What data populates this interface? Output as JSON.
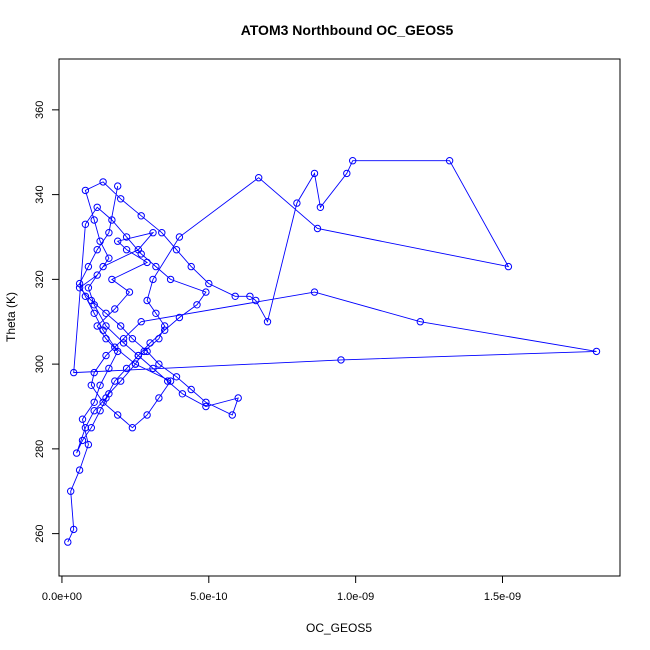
{
  "chart_data": {
    "type": "line",
    "title": "ATOM3 Northbound OC_GEOS5",
    "xlabel": "OC_GEOS5",
    "ylabel": "Theta (K)",
    "xlim": [
      -1e-11,
      1.9e-09
    ],
    "ylim": [
      250,
      372
    ],
    "x_ticks": [
      0,
      5e-10,
      1e-09,
      1.5e-09
    ],
    "x_tick_labels": [
      "0.0e+00",
      "5.0e-10",
      "1.0e-09",
      "1.5e-09"
    ],
    "y_ticks": [
      260,
      280,
      300,
      320,
      340,
      360
    ],
    "y_tick_labels": [
      "260",
      "280",
      "300",
      "320",
      "340",
      "360"
    ],
    "grid": false,
    "legend": "none",
    "series_color": "#0000ff",
    "marker": "open-circle",
    "series": [
      {
        "x": [
          2e-11,
          4e-11,
          3e-11,
          6e-11,
          9e-11,
          7e-11,
          1.1e-10,
          1.3e-10,
          1.6e-10,
          1.9e-10,
          1.5e-10,
          1.2e-10,
          1.8e-10,
          2.3e-10,
          1.7e-10,
          2.9e-10,
          2.2e-10,
          1.9e-10,
          3.1e-10,
          2.6e-10,
          1.4e-10,
          9e-11,
          1.1e-10,
          1.5e-10,
          2.1e-10,
          2.6e-10,
          3.1e-10,
          3.6e-10,
          4.1e-10,
          4.9e-10,
          6e-10,
          5.8e-10,
          4.9e-10,
          4.4e-10,
          3.9e-10,
          3.3e-10,
          2.9e-10,
          2.4e-10,
          2e-10,
          1.5e-10,
          1e-10,
          6e-11,
          1.2e-10,
          1.6e-10,
          1.3e-10,
          1.1e-10,
          8e-11,
          1.4e-10,
          2e-10,
          2.7e-10,
          3.4e-10,
          3.9e-10,
          4.4e-10,
          5e-10,
          5.9e-10,
          6.4e-10,
          6.6e-10,
          7e-10,
          8e-10,
          8.6e-10,
          8.8e-10,
          9.7e-10,
          9.9e-10,
          1.32e-09,
          1.52e-09,
          8.7e-10,
          6.7e-10,
          4e-10,
          3.1e-10,
          2.9e-10,
          3.2e-10,
          3.5e-10,
          3.3e-10,
          2.8e-10,
          2.5e-10,
          2e-10,
          1.6e-10,
          1.3e-10,
          1e-10,
          7e-11,
          5e-11,
          8e-11,
          1.1e-10,
          1.5e-10,
          1.8e-10,
          2.2e-10,
          2.6e-10,
          3e-10,
          3.5e-10,
          4e-10,
          4.6e-10,
          4.9e-10,
          3.7e-10,
          3.2e-10,
          2.7e-10,
          2.2e-10,
          1.7e-10,
          1.2e-10,
          8e-11,
          4e-11,
          9.5e-10,
          1.82e-09,
          1.22e-09,
          8.6e-10,
          2.7e-10,
          2.1e-10,
          1.5e-10,
          1.1e-10,
          1e-10,
          1.4e-10,
          1.9e-10,
          2.4e-10,
          2.9e-10,
          3.3e-10,
          3.7e-10,
          2.5e-10,
          1.8e-10,
          1.4e-10,
          1.1e-10,
          8e-11,
          6e-11,
          9e-11,
          1.2e-10,
          1.6e-10,
          1.9e-10
        ],
        "y": [
          258,
          261,
          270,
          275,
          281,
          287,
          291,
          295,
          299,
          303,
          306,
          309,
          313,
          317,
          320,
          324,
          327,
          329,
          331,
          327,
          323,
          318,
          314,
          309,
          305,
          302,
          299,
          296,
          293,
          290,
          292,
          288,
          291,
          294,
          297,
          300,
          303,
          306,
          309,
          312,
          315,
          318,
          321,
          325,
          329,
          334,
          341,
          343,
          339,
          335,
          331,
          327,
          323,
          319,
          316,
          316,
          315,
          310,
          338,
          345,
          337,
          345,
          348,
          348,
          323,
          332,
          344,
          330,
          320,
          315,
          312,
          309,
          306,
          303,
          300,
          296,
          293,
          289,
          285,
          282,
          279,
          285,
          289,
          292,
          296,
          299,
          302,
          305,
          308,
          311,
          314,
          317,
          320,
          323,
          326,
          330,
          334,
          337,
          333,
          298,
          301,
          303,
          310,
          317,
          310,
          306,
          302,
          298,
          295,
          291,
          288,
          285,
          288,
          292,
          296,
          300,
          304,
          308,
          312,
          316,
          319,
          323,
          327,
          331,
          342
        ]
      }
    ]
  }
}
